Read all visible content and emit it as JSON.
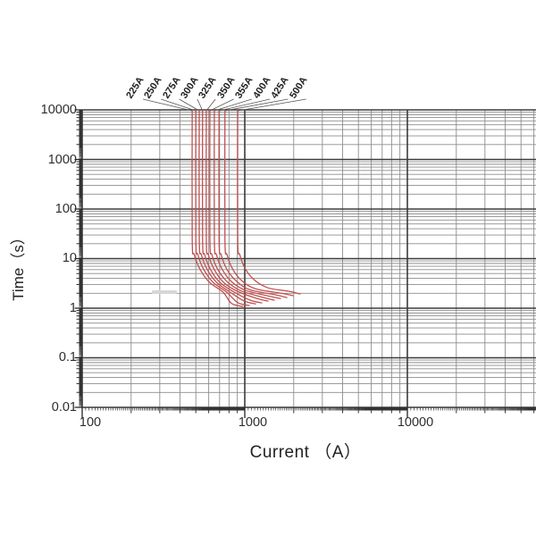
{
  "chart_data": {
    "type": "line",
    "title": "",
    "xlabel": "Current （A）",
    "ylabel": "Time（s）",
    "xscale": "log",
    "yscale": "log",
    "xlim": [
      100,
      63000
    ],
    "ylim": [
      0.01,
      10000
    ],
    "grid": true,
    "x_tick_labels": [
      "100",
      "1000",
      "10000"
    ],
    "x_tick_values": [
      100,
      1000,
      10000
    ],
    "y_tick_labels": [
      "10000",
      "1000",
      "100",
      "10",
      "1",
      "0.1",
      "0.01"
    ],
    "y_tick_values": [
      10000,
      1000,
      100,
      10,
      1,
      0.1,
      0.01
    ],
    "colors": {
      "curve": "#c05050",
      "grid_major": "#3b3b3b",
      "grid_minor": "#8d8d8d",
      "tick": "#333333",
      "leader_line": "#555555"
    },
    "series": [
      {
        "name": "225A",
        "points": [
          [
            475,
            10000
          ],
          [
            475,
            25
          ],
          [
            489,
            12
          ],
          [
            532,
            6
          ],
          [
            608,
            3.3
          ],
          [
            736,
            2.1
          ],
          [
            829,
            1.25
          ],
          [
            975,
            1.08
          ]
        ]
      },
      {
        "name": "250A",
        "points": [
          [
            500,
            10000
          ],
          [
            500,
            25
          ],
          [
            515,
            12
          ],
          [
            560,
            6
          ],
          [
            640,
            3.3
          ],
          [
            775,
            2.1
          ],
          [
            905,
            1.3
          ],
          [
            1065,
            1.13
          ]
        ]
      },
      {
        "name": "275A",
        "points": [
          [
            525,
            10000
          ],
          [
            525,
            25
          ],
          [
            541,
            12
          ],
          [
            588,
            6
          ],
          [
            672,
            3.3
          ],
          [
            814,
            2.1
          ],
          [
            990,
            1.4
          ],
          [
            1165,
            1.22
          ]
        ]
      },
      {
        "name": "300A",
        "points": [
          [
            550,
            10000
          ],
          [
            550,
            25
          ],
          [
            567,
            12
          ],
          [
            616,
            6
          ],
          [
            704,
            3.3
          ],
          [
            853,
            2.15
          ],
          [
            1080,
            1.45
          ],
          [
            1270,
            1.28
          ]
        ]
      },
      {
        "name": "325A",
        "points": [
          [
            580,
            10000
          ],
          [
            580,
            25
          ],
          [
            597,
            12
          ],
          [
            650,
            6
          ],
          [
            742,
            3.3
          ],
          [
            899,
            2.2
          ],
          [
            1182,
            1.58
          ],
          [
            1390,
            1.39
          ]
        ]
      },
      {
        "name": "350A",
        "points": [
          [
            610,
            10000
          ],
          [
            610,
            25
          ],
          [
            628,
            12
          ],
          [
            683,
            6
          ],
          [
            781,
            3.4
          ],
          [
            946,
            2.25
          ],
          [
            1292,
            1.65
          ],
          [
            1520,
            1.45
          ]
        ]
      },
      {
        "name": "355A",
        "points": [
          [
            650,
            10000
          ],
          [
            650,
            25
          ],
          [
            670,
            12
          ],
          [
            728,
            6
          ],
          [
            832,
            3.4
          ],
          [
            1008,
            2.3
          ],
          [
            1411,
            1.75
          ],
          [
            1660,
            1.57
          ]
        ]
      },
      {
        "name": "400A",
        "points": [
          [
            695,
            10000
          ],
          [
            695,
            25
          ],
          [
            716,
            12
          ],
          [
            778,
            6
          ],
          [
            890,
            3.5
          ],
          [
            1077,
            2.35
          ],
          [
            1543,
            1.86
          ],
          [
            1815,
            1.64
          ]
        ]
      },
      {
        "name": "425A",
        "points": [
          [
            755,
            10000
          ],
          [
            755,
            25
          ],
          [
            778,
            12
          ],
          [
            846,
            6
          ],
          [
            966,
            3.5
          ],
          [
            1170,
            2.45
          ],
          [
            1683,
            2.0
          ],
          [
            1980,
            1.79
          ]
        ]
      },
      {
        "name": "500A",
        "points": [
          [
            905,
            10000
          ],
          [
            905,
            25
          ],
          [
            932,
            12
          ],
          [
            1014,
            6
          ],
          [
            1158,
            3.6
          ],
          [
            1403,
            2.55
          ],
          [
            1862,
            2.2
          ],
          [
            2190,
            1.94
          ]
        ]
      }
    ]
  }
}
